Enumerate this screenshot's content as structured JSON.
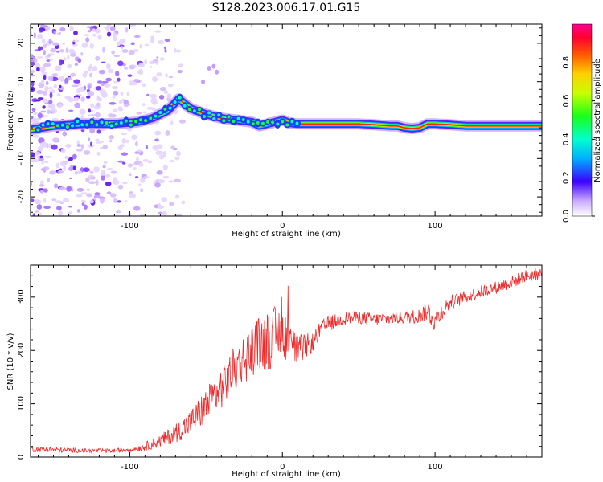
{
  "title": "S128.2023.006.17.01.G15",
  "colors": {
    "snr_line": "#ee2a2a",
    "axis": "#000000"
  },
  "chart_data": [
    {
      "type": "heatmap",
      "xlabel": "Height of straight line (km)",
      "ylabel": "Frequency (Hz)",
      "xlim": [
        -165,
        170
      ],
      "ylim": [
        -25,
        25
      ],
      "x_ticks": [
        "-100",
        "0",
        "100"
      ],
      "y_ticks": [
        "20",
        "10",
        "0",
        "-10",
        "-20"
      ],
      "colorbar": {
        "label": "Normalized spectral amplitude",
        "range": [
          0,
          1
        ],
        "ticks": [
          "0.0",
          "0.2",
          "0.4",
          "0.6",
          "0.8"
        ]
      },
      "ridge": {
        "heights_km": [
          -165,
          -150,
          -130,
          -110,
          -95,
          -85,
          -75,
          -68,
          -60,
          -50,
          -40,
          -30,
          -20,
          -15,
          -10,
          -5,
          0,
          5,
          10,
          30,
          50,
          60,
          70,
          75,
          80,
          85,
          90,
          95,
          100,
          110,
          120,
          140,
          170
        ],
        "frequency_hz": [
          -2.5,
          -1.5,
          -1.0,
          -1.0,
          -0.5,
          0.5,
          2.5,
          5.5,
          3.0,
          1.5,
          0.5,
          0.0,
          -0.5,
          -1.5,
          -1.0,
          -0.5,
          0.0,
          -0.8,
          -1.0,
          -1.0,
          -1.0,
          -1.2,
          -1.5,
          -1.5,
          -2.0,
          -2.2,
          -2.0,
          -1.0,
          -1.0,
          -1.2,
          -1.5,
          -1.5,
          -1.5
        ]
      }
    },
    {
      "type": "line",
      "xlabel": "Height of straight line (km)",
      "ylabel": "SNR (10 * v/v)",
      "xlim": [
        -165,
        170
      ],
      "ylim": [
        0,
        360
      ],
      "x_ticks": [
        "-100",
        "0",
        "100"
      ],
      "y_ticks": [
        "0",
        "100",
        "200",
        "300"
      ],
      "series": [
        {
          "x": [
            -165,
            -150,
            -130,
            -110,
            -95,
            -90,
            -80,
            -70,
            -60,
            -50,
            -40,
            -30,
            -20,
            -10,
            0,
            10,
            20,
            25,
            30,
            40,
            50,
            60,
            70,
            80,
            90,
            95,
            100,
            105,
            110,
            120,
            130,
            140,
            150,
            160,
            170
          ],
          "values": [
            15,
            14,
            12,
            12,
            16,
            20,
            30,
            45,
            65,
            95,
            130,
            170,
            200,
            220,
            235,
            200,
            215,
            240,
            250,
            260,
            262,
            258,
            260,
            262,
            265,
            275,
            255,
            275,
            290,
            300,
            310,
            318,
            328,
            340,
            345
          ],
          "noise_amplitude": [
            5,
            5,
            4,
            4,
            5,
            8,
            12,
            18,
            25,
            35,
            40,
            45,
            50,
            60,
            50,
            30,
            18,
            15,
            15,
            12,
            12,
            12,
            12,
            12,
            14,
            20,
            22,
            15,
            14,
            12,
            12,
            12,
            12,
            12,
            12
          ]
        }
      ]
    }
  ]
}
